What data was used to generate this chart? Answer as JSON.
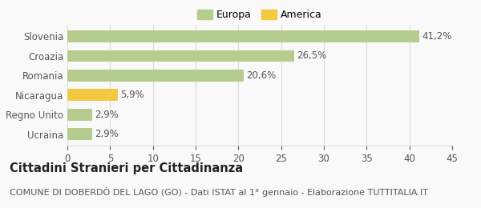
{
  "categories": [
    "Ucraina",
    "Regno Unito",
    "Nicaragua",
    "Romania",
    "Croazia",
    "Slovenia"
  ],
  "values": [
    2.9,
    2.9,
    5.9,
    20.6,
    26.5,
    41.2
  ],
  "labels": [
    "2,9%",
    "2,9%",
    "5,9%",
    "20,6%",
    "26,5%",
    "41,2%"
  ],
  "colors": [
    "#b5cc8e",
    "#b5cc8e",
    "#f5c842",
    "#b5cc8e",
    "#b5cc8e",
    "#b5cc8e"
  ],
  "legend": [
    {
      "label": "Europa",
      "color": "#b5cc8e"
    },
    {
      "label": "America",
      "color": "#f5c842"
    }
  ],
  "xlim": [
    0,
    45
  ],
  "xticks": [
    0,
    5,
    10,
    15,
    20,
    25,
    30,
    35,
    40,
    45
  ],
  "title": "Cittadini Stranieri per Cittadinanza",
  "subtitle": "COMUNE DI DOBERDÒ DEL LAGO (GO) - Dati ISTAT al 1° gennaio - Elaborazione TUTTITALIA.IT",
  "bg_color": "#f9f9f9",
  "bar_edge_color": "none",
  "grid_color": "#dddddd",
  "label_color": "#555555",
  "title_fontsize": 10.5,
  "subtitle_fontsize": 8.0,
  "tick_fontsize": 8.5,
  "bar_label_fontsize": 8.5
}
